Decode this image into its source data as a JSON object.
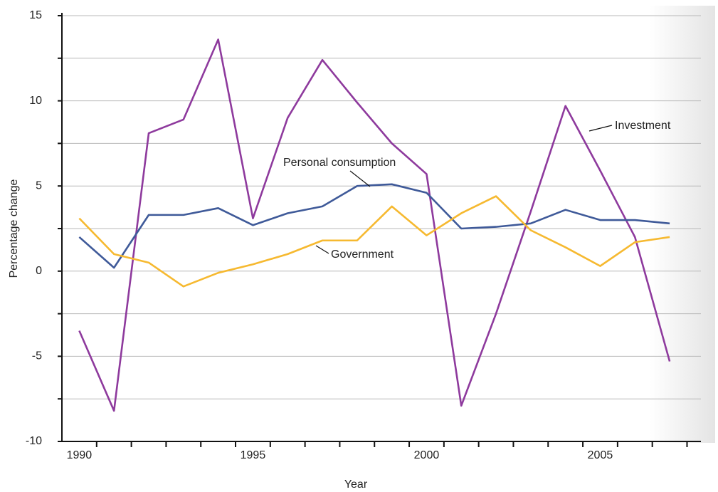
{
  "chart_data": {
    "type": "line",
    "x_label": "Year",
    "y_label": "Percentage change",
    "x": [
      1990,
      1991,
      1992,
      1993,
      1994,
      1995,
      1996,
      1997,
      1998,
      1999,
      2000,
      2001,
      2002,
      2003,
      2004,
      2005,
      2006,
      2007
    ],
    "series": [
      {
        "name": "Investment",
        "color": "#8e3a9d",
        "values": [
          -3.5,
          -8.2,
          8.1,
          8.9,
          13.6,
          3.1,
          9.0,
          12.4,
          9.9,
          7.5,
          5.7,
          -7.9,
          -2.5,
          3.5,
          9.7,
          5.9,
          2.0,
          -5.3
        ]
      },
      {
        "name": "Personal consumption",
        "color": "#3f5a99",
        "values": [
          2.0,
          0.2,
          3.3,
          3.3,
          3.7,
          2.7,
          3.4,
          3.8,
          5.0,
          5.1,
          4.6,
          2.5,
          2.6,
          2.8,
          3.6,
          3.0,
          3.0,
          2.8
        ]
      },
      {
        "name": "Government",
        "color": "#f6b930",
        "values": [
          3.1,
          1.0,
          0.5,
          -0.9,
          -0.1,
          0.4,
          1.0,
          1.8,
          1.8,
          3.8,
          2.1,
          3.4,
          4.4,
          2.4,
          1.4,
          0.3,
          1.7,
          2.0
        ]
      }
    ],
    "xlim": [
      1989.5,
      2007.9
    ],
    "xticks": [
      1990,
      {
        "value": 1990.5,
        "label": null
      },
      {
        "value": 1991.5,
        "label": null
      },
      {
        "value": 1992.5,
        "label": null
      },
      {
        "value": 1993.5,
        "label": null
      },
      {
        "value": 1994.5,
        "label": null
      },
      1995,
      {
        "value": 1995.5,
        "label": null
      },
      {
        "value": 1996.5,
        "label": null
      },
      {
        "value": 1997.5,
        "label": null
      },
      {
        "value": 1998.5,
        "label": null
      },
      {
        "value": 1999.5,
        "label": null
      },
      2000,
      {
        "value": 2000.5,
        "label": null
      },
      {
        "value": 2001.5,
        "label": null
      },
      {
        "value": 2002.5,
        "label": null
      },
      {
        "value": 2003.5,
        "label": null
      },
      {
        "value": 2004.5,
        "label": null
      },
      2005,
      {
        "value": 2005.5,
        "label": null
      },
      {
        "value": 2006.5,
        "label": null
      },
      {
        "value": 2007.5,
        "label": null
      }
    ],
    "ylim": [
      -10,
      15
    ],
    "yticks": [
      -10,
      {
        "value": -7.5,
        "label": null
      },
      -5,
      {
        "value": -2.5,
        "label": null
      },
      0,
      {
        "value": 2.5,
        "label": null
      },
      5,
      {
        "value": 7.5,
        "label": null
      },
      10,
      {
        "value": 12.5,
        "label": null
      },
      15
    ],
    "grid": true
  }
}
